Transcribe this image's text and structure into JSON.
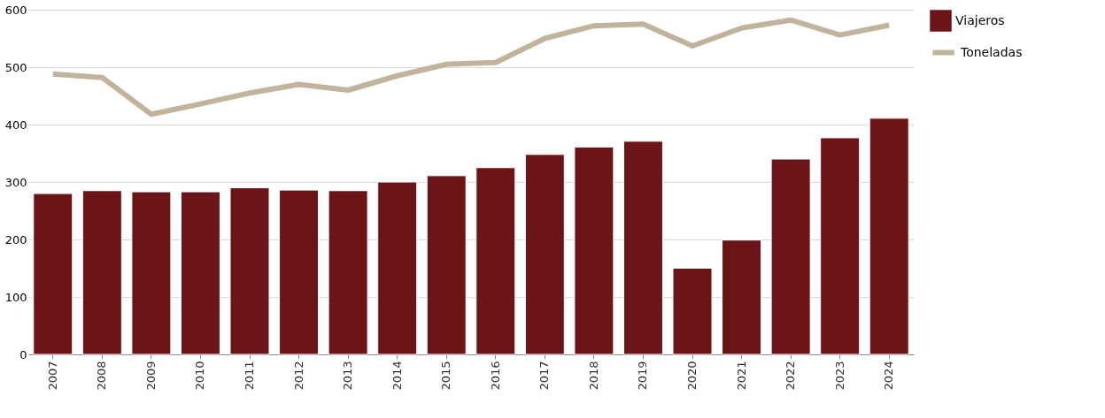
{
  "chart_data": {
    "type": "bar",
    "categories": [
      "2007",
      "2008",
      "2009",
      "2010",
      "2011",
      "2012",
      "2013",
      "2014",
      "2015",
      "2016",
      "2017",
      "2018",
      "2019",
      "2020",
      "2021",
      "2022",
      "2023",
      "2024"
    ],
    "series": [
      {
        "name": "Viajeros",
        "color": "#6b1519",
        "values": [
          280,
          285,
          283,
          283,
          290,
          286,
          285,
          300,
          311,
          325,
          348,
          361,
          371,
          150,
          199,
          340,
          377,
          411
        ]
      },
      {
        "name": "Toneladas",
        "type": "line",
        "color": "#c2b49c",
        "values": [
          488,
          482,
          418,
          436,
          455,
          470,
          460,
          485,
          505,
          508,
          550,
          572,
          575,
          537,
          568,
          582,
          556,
          573
        ]
      }
    ],
    "ylim": [
      0,
      600
    ],
    "yticks": [
      0,
      100,
      200,
      300,
      400,
      500,
      600
    ],
    "grid": "y",
    "legend": "right",
    "line_style": "solid",
    "marker": "none"
  }
}
